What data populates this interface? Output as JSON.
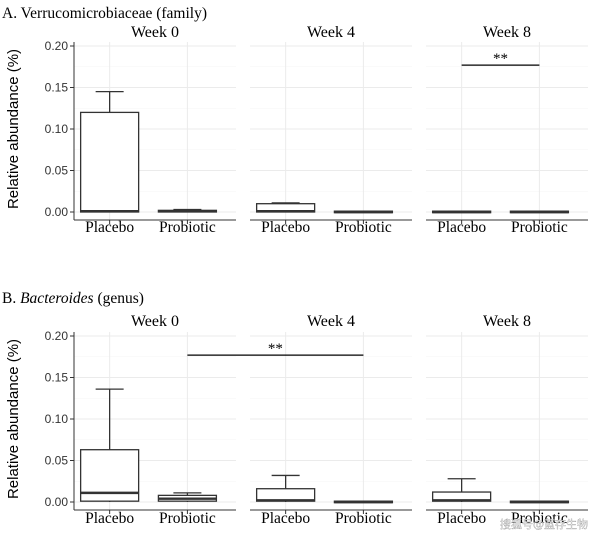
{
  "chart_data": [
    {
      "type": "boxplot",
      "title_prefix": "A. ",
      "title_italic": "",
      "title_suffix": "Verrucomicrobiaceae (family)",
      "ylabel": "Relative abundance (%)",
      "ylim": [
        0,
        0.2
      ],
      "yticks": [
        "0.00",
        "0.05",
        "0.10",
        "0.15",
        "0.20"
      ],
      "grid": true,
      "categories": [
        "Placebo",
        "Probiotic"
      ],
      "facets": [
        {
          "title": "Week 0",
          "boxes": [
            {
              "group": "Placebo",
              "min": 0.0,
              "q1": 0.0,
              "median": 0.001,
              "q3": 0.12,
              "max": 0.145
            },
            {
              "group": "Probiotic",
              "min": 0.0,
              "q1": 0.0,
              "median": 0.001,
              "q3": 0.002,
              "max": 0.003
            }
          ],
          "significance": []
        },
        {
          "title": "Week 4",
          "boxes": [
            {
              "group": "Placebo",
              "min": 0.0,
              "q1": 0.0,
              "median": 0.001,
              "q3": 0.01,
              "max": 0.011
            },
            {
              "group": "Probiotic",
              "min": 0.0,
              "q1": 0.0,
              "median": 0.0,
              "q3": 0.001,
              "max": 0.001
            }
          ],
          "significance": []
        },
        {
          "title": "Week 8",
          "boxes": [
            {
              "group": "Placebo",
              "min": 0.0,
              "q1": 0.0,
              "median": 0.0,
              "q3": 0.001,
              "max": 0.001
            },
            {
              "group": "Probiotic",
              "min": 0.0,
              "q1": 0.0,
              "median": 0.0,
              "q3": 0.001,
              "max": 0.001
            }
          ],
          "significance": [
            {
              "from": "Week 8 Placebo",
              "to": "Week 8 Probiotic",
              "y": 0.177,
              "label": "**"
            }
          ]
        }
      ]
    },
    {
      "type": "boxplot",
      "title_prefix": "B. ",
      "title_italic": "Bacteroides",
      "title_suffix": " (genus)",
      "ylabel": "Relative abundance (%)",
      "ylim": [
        0,
        0.2
      ],
      "yticks": [
        "0.00",
        "0.05",
        "0.10",
        "0.15",
        "0.20"
      ],
      "grid": true,
      "categories": [
        "Placebo",
        "Probiotic"
      ],
      "facets": [
        {
          "title": "Week 0",
          "boxes": [
            {
              "group": "Placebo",
              "min": 0.0,
              "q1": 0.001,
              "median": 0.011,
              "q3": 0.063,
              "max": 0.136
            },
            {
              "group": "Probiotic",
              "min": 0.0,
              "q1": 0.001,
              "median": 0.004,
              "q3": 0.008,
              "max": 0.011
            }
          ],
          "significance": []
        },
        {
          "title": "Week 4",
          "boxes": [
            {
              "group": "Placebo",
              "min": 0.0,
              "q1": 0.001,
              "median": 0.002,
              "q3": 0.016,
              "max": 0.032
            },
            {
              "group": "Probiotic",
              "min": 0.0,
              "q1": 0.0,
              "median": 0.0,
              "q3": 0.001,
              "max": 0.001
            }
          ],
          "significance": [
            {
              "from": "Week 0 Probiotic",
              "to": "Week 4 Probiotic",
              "y": 0.177,
              "label": "**"
            }
          ]
        },
        {
          "title": "Week 8",
          "boxes": [
            {
              "group": "Placebo",
              "min": 0.0,
              "q1": 0.001,
              "median": 0.002,
              "q3": 0.012,
              "max": 0.028
            },
            {
              "group": "Probiotic",
              "min": 0.0,
              "q1": 0.0,
              "median": 0.0,
              "q3": 0.001,
              "max": 0.001
            }
          ],
          "significance": []
        }
      ]
    }
  ],
  "watermark": "搜狐号@蓝存生物"
}
